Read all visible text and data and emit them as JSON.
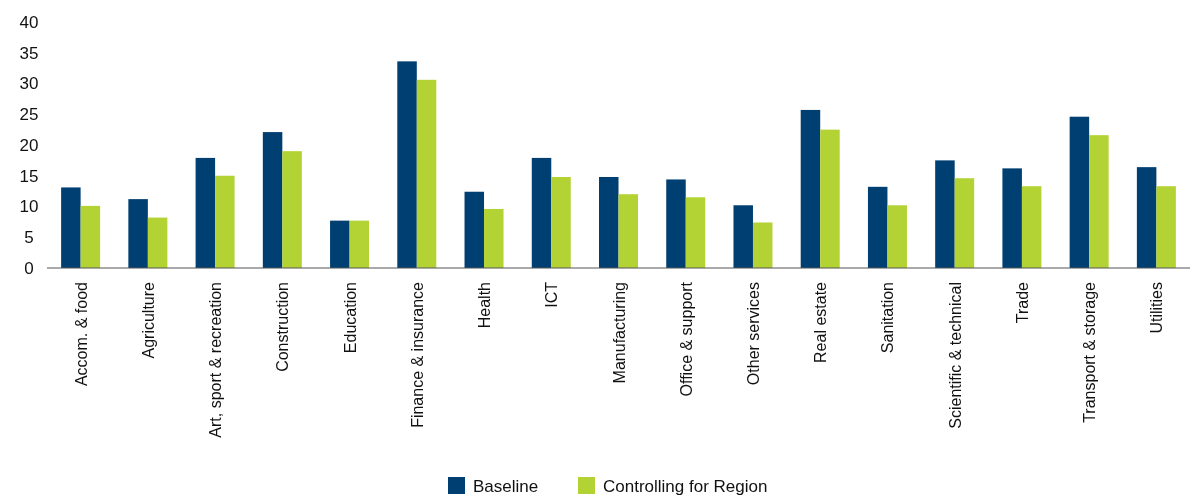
{
  "chart_data": {
    "type": "bar",
    "categories": [
      "Accom. & food",
      "Agriculture",
      "Art, sport & recreation",
      "Construction",
      "Education",
      "Finance & insurance",
      "Health",
      "ICT",
      "Manufacturing",
      "Office & support",
      "Other services",
      "Real estate",
      "Sanitation",
      "Scientific & technical",
      "Trade",
      "Transport & storage",
      "Utilities"
    ],
    "series": [
      {
        "name": "Baseline",
        "color": "#003f72",
        "values": [
          13.1,
          11.2,
          17.9,
          22.1,
          7.7,
          33.6,
          12.4,
          17.9,
          14.8,
          14.4,
          10.2,
          25.7,
          13.2,
          17.5,
          16.2,
          24.6,
          16.4
        ]
      },
      {
        "name": "Controlling for Region",
        "color": "#b3d335",
        "values": [
          10.1,
          8.2,
          15.0,
          19.0,
          7.7,
          30.6,
          9.6,
          14.8,
          12.0,
          11.5,
          7.4,
          22.5,
          10.2,
          14.6,
          13.3,
          21.6,
          13.3
        ]
      }
    ],
    "ylim": [
      0,
      40
    ],
    "yticks": [
      0,
      5,
      10,
      15,
      20,
      25,
      30,
      35,
      40
    ],
    "grid": false,
    "legend": "bottom"
  }
}
